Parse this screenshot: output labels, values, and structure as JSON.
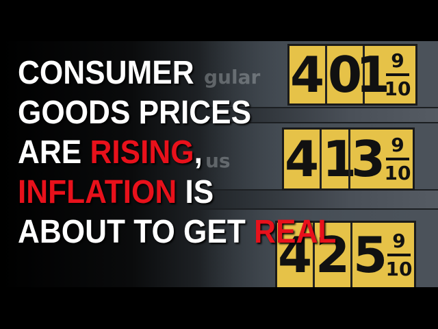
{
  "headline": {
    "line1": "CONSUMER",
    "line2": "GOODS PRICES",
    "line3_prefix": "ARE ",
    "line3_red": "RISING",
    "line3_suffix": ",",
    "line4_red": "INFLATION",
    "line4_suffix": " IS",
    "line5_prefix": "ABOUT TO GET ",
    "line5_red": "REAL"
  },
  "sign": {
    "label_top": "gular",
    "label_mid": "us",
    "prices": [
      {
        "digits": [
          "4",
          "0",
          "1"
        ],
        "numerator": "9",
        "denominator": "10"
      },
      {
        "digits": [
          "4",
          "1",
          "3"
        ],
        "numerator": "9",
        "denominator": "10"
      },
      {
        "digits": [
          "4",
          "2",
          "5"
        ],
        "numerator": "9",
        "denominator": "10"
      }
    ]
  },
  "colors": {
    "accent_red": "#e8111b",
    "panel_yellow": "#e6c248"
  }
}
